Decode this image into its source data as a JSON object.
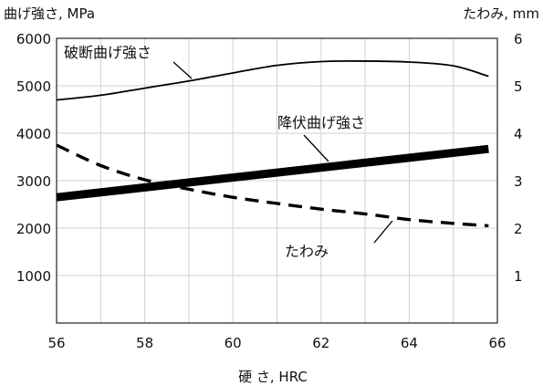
{
  "chart_data": {
    "type": "line",
    "xlabel": "硬 さ, HRC",
    "ylabel_left": "曲げ強さ, MPa",
    "ylabel_right": "たわみ, mm",
    "xlim": [
      56,
      66
    ],
    "ylim_left": [
      0,
      6000
    ],
    "ylim_right": [
      0,
      6
    ],
    "x_ticks": [
      56,
      58,
      60,
      62,
      64,
      66
    ],
    "y_ticks_left": [
      1000,
      2000,
      3000,
      4000,
      5000,
      6000
    ],
    "y_ticks_right": [
      1,
      2,
      3,
      4,
      5,
      6
    ],
    "grid": true,
    "series": [
      {
        "name": "破断曲げ強さ",
        "axis": "left",
        "style": "solid-thin",
        "x": [
          56,
          57,
          58,
          59,
          60,
          61,
          62,
          63,
          64,
          65,
          65.8
        ],
        "values": [
          4700,
          4800,
          4950,
          5100,
          5270,
          5430,
          5510,
          5520,
          5500,
          5420,
          5200
        ]
      },
      {
        "name": "降伏曲げ強さ",
        "axis": "left",
        "style": "solid-thick",
        "x": [
          56,
          65.8
        ],
        "values": [
          2650,
          3670
        ]
      },
      {
        "name": "たわみ",
        "axis": "right",
        "style": "dashed",
        "x": [
          56,
          57,
          58,
          59,
          60,
          61,
          62,
          63,
          64,
          65,
          65.8
        ],
        "values": [
          3.75,
          3.32,
          3.02,
          2.82,
          2.65,
          2.52,
          2.4,
          2.3,
          2.18,
          2.1,
          2.05
        ]
      }
    ]
  }
}
